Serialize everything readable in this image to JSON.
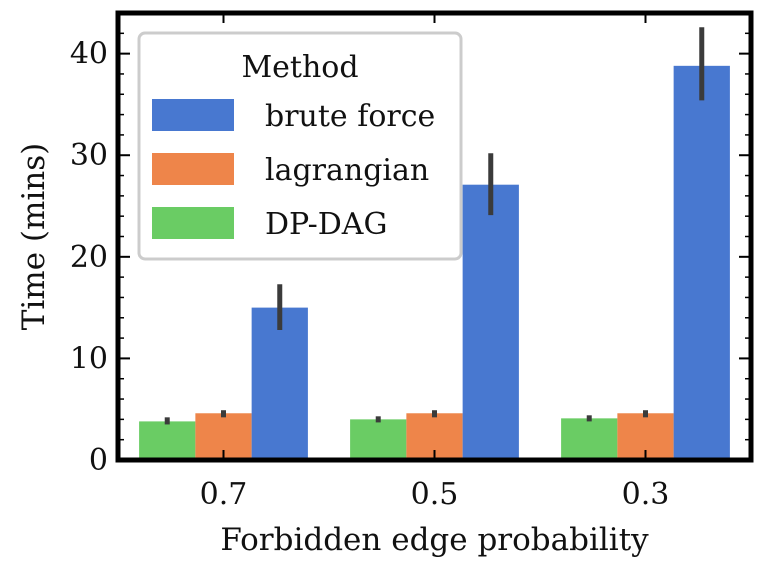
{
  "chart_data": {
    "type": "bar",
    "xlabel": "Forbidden edge probability",
    "ylabel": "Time (mins)",
    "categories": [
      "0.7",
      "0.5",
      "0.3"
    ],
    "ylim": [
      0,
      44
    ],
    "yticks": [
      0,
      10,
      20,
      30,
      40
    ],
    "legend": {
      "title": "Method",
      "placement": "top-left"
    },
    "series": [
      {
        "name": "DP-DAG",
        "color": "#6acc64",
        "values": [
          3.8,
          4.0,
          4.1
        ],
        "err_low": [
          3.5,
          3.7,
          3.8
        ],
        "err_high": [
          4.2,
          4.3,
          4.4
        ]
      },
      {
        "name": "lagrangian",
        "color": "#ee854a",
        "values": [
          4.6,
          4.6,
          4.6
        ],
        "err_low": [
          4.2,
          4.2,
          4.2
        ],
        "err_high": [
          4.9,
          4.9,
          4.9
        ]
      },
      {
        "name": "brute force",
        "color": "#4878d0",
        "values": [
          15.0,
          27.1,
          38.8
        ],
        "err_low": [
          12.8,
          24.1,
          35.4
        ],
        "err_high": [
          17.3,
          30.2,
          42.6
        ]
      }
    ],
    "legend_order": [
      "brute force",
      "lagrangian",
      "DP-DAG"
    ]
  }
}
